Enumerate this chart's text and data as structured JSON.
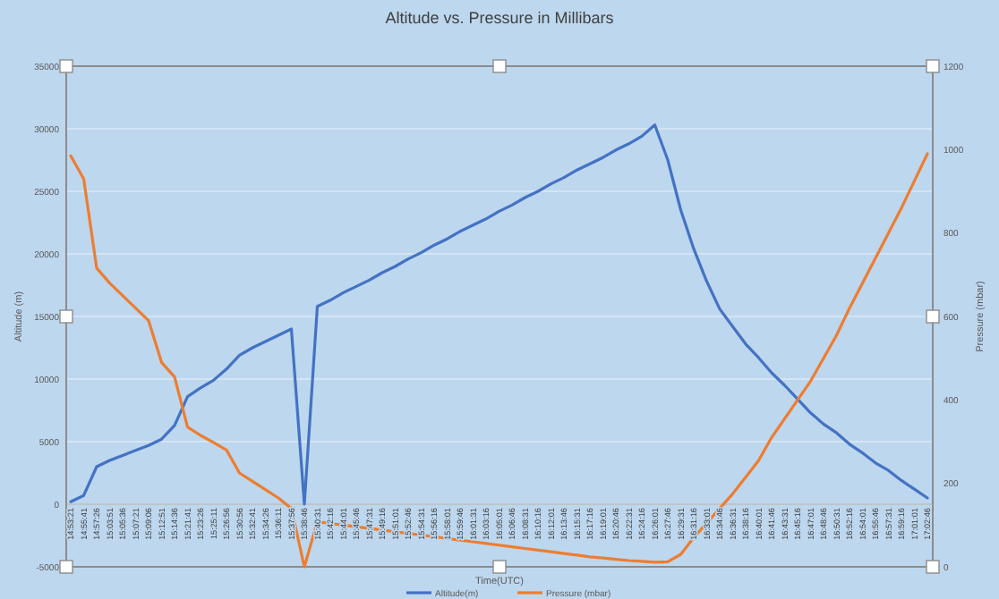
{
  "chart_data": {
    "type": "line",
    "title": "Altitude vs. Pressure in Millibars",
    "xlabel": "Time(UTC)",
    "ylabel": "Altitude (m)",
    "y2label": "Pressure (mbar)",
    "categories": [
      "14:53:21",
      "14:55:41",
      "14:57:26",
      "15:03:51",
      "15:05:36",
      "15:07:21",
      "15:09:06",
      "15:12:51",
      "15:14:36",
      "15:21:41",
      "15:23:26",
      "15:25:11",
      "15:26:56",
      "15:30:56",
      "15:32:41",
      "15:34:26",
      "15:36:11",
      "15:37:56",
      "15:38:46",
      "15:40:31",
      "15:42:16",
      "15:44:01",
      "15:45:46",
      "15:47:31",
      "15:49:16",
      "15:51:01",
      "15:52:46",
      "15:54:31",
      "15:56:16",
      "15:58:01",
      "15:59:46",
      "16:01:31",
      "16:03:16",
      "16:05:01",
      "16:06:46",
      "16:08:31",
      "16:10:16",
      "16:12:01",
      "16:13:46",
      "16:15:31",
      "16:17:16",
      "16:19:01",
      "16:20:46",
      "16:22:31",
      "16:24:16",
      "16:26:01",
      "16:27:46",
      "16:29:31",
      "16:31:16",
      "16:33:01",
      "16:34:46",
      "16:36:31",
      "16:38:16",
      "16:40:01",
      "16:41:46",
      "16:43:31",
      "16:45:16",
      "16:47:01",
      "16:48:46",
      "16:50:31",
      "16:52:16",
      "16:54:01",
      "16:55:46",
      "16:57:31",
      "16:59:16",
      "17:01:01",
      "17:02:46"
    ],
    "series": [
      {
        "name": "Altitude(m)",
        "color": "#4472c4",
        "values": [
          200,
          700,
          3000,
          3500,
          3900,
          4300,
          4700,
          5200,
          6300,
          8600,
          9300,
          9900,
          10800,
          11900,
          12500,
          13000,
          13500,
          14000,
          0,
          15800,
          16300,
          16900,
          17400,
          17900,
          18500,
          19000,
          19600,
          20100,
          20700,
          21200,
          21800,
          22300,
          22800,
          23400,
          23900,
          24500,
          25000,
          25600,
          26100,
          26700,
          27200,
          27700,
          28300,
          28800,
          29400,
          30300,
          27500,
          23500,
          20400,
          17800,
          15600,
          14200,
          12800,
          11700,
          10500,
          9500,
          8400,
          7300,
          6400,
          5700,
          4800,
          4100,
          3300,
          2700,
          1900,
          1200,
          500
        ]
      },
      {
        "name": "Pressure (mbar)",
        "color": "#ed7d31",
        "axis": "y2",
        "values": [
          985,
          930,
          716,
          680,
          650,
          620,
          590,
          490,
          455,
          335,
          315,
          298,
          280,
          225,
          205,
          185,
          165,
          140,
          0,
          108,
          104,
          100,
          96,
          92,
          88,
          84,
          80,
          76,
          72,
          68,
          64,
          60,
          56,
          52,
          48,
          44,
          40,
          36,
          32,
          28,
          24,
          21,
          18,
          15,
          13,
          11,
          12,
          30,
          70,
          105,
          140,
          175,
          215,
          255,
          310,
          355,
          400,
          445,
          500,
          555,
          620,
          680,
          740,
          800,
          860,
          925,
          990
        ]
      }
    ],
    "ylim": [
      -5000,
      35000
    ],
    "yticks": [
      -5000,
      0,
      5000,
      10000,
      15000,
      20000,
      25000,
      30000,
      35000
    ],
    "y2lim": [
      0,
      1200
    ],
    "y2ticks": [
      0,
      200,
      400,
      600,
      800,
      1000,
      1200
    ],
    "grid": "y",
    "legend": "bottom",
    "marker": "none",
    "line_style": "solid"
  }
}
